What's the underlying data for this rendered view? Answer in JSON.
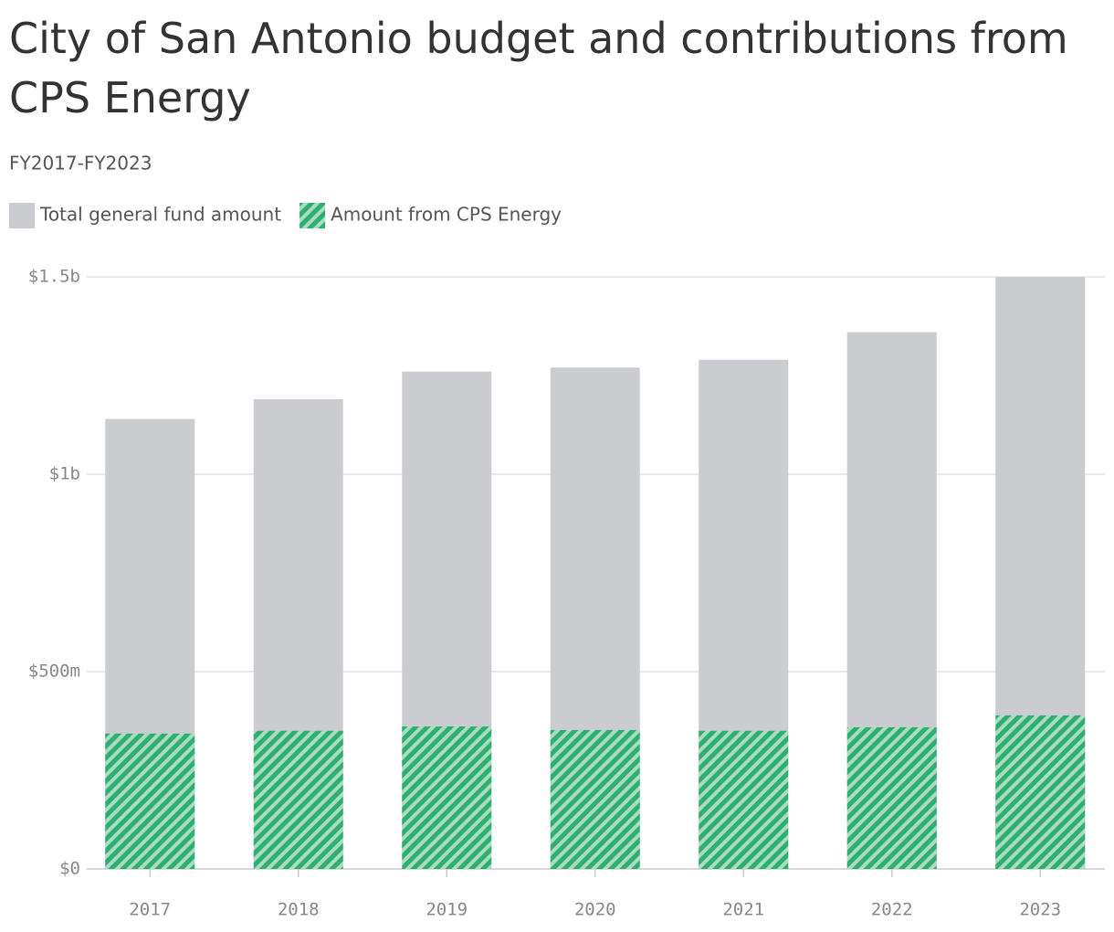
{
  "chart_data": {
    "type": "bar",
    "title": "City of San Antonio budget and contributions from CPS Energy",
    "subtitle": "FY2017-FY2023",
    "categories": [
      "2017",
      "2018",
      "2019",
      "2020",
      "2021",
      "2022",
      "2023"
    ],
    "series": [
      {
        "name": "Total general fund amount",
        "color": "#cbcccf",
        "values": [
          1140000000,
          1190000000,
          1260000000,
          1270000000,
          1290000000,
          1360000000,
          1500000000
        ]
      },
      {
        "name": "Amount from CPS Energy",
        "color": "#2fae72",
        "values": [
          343000000,
          350000000,
          361000000,
          352000000,
          350000000,
          359000000,
          389000000
        ]
      }
    ],
    "ylim": [
      0,
      1500000000
    ],
    "yticks": [
      {
        "value": 0,
        "label": "$0"
      },
      {
        "value": 500000000,
        "label": "$500m"
      },
      {
        "value": 1000000000,
        "label": "$1b"
      },
      {
        "value": 1500000000,
        "label": "$1.5b"
      }
    ],
    "grid": true
  }
}
